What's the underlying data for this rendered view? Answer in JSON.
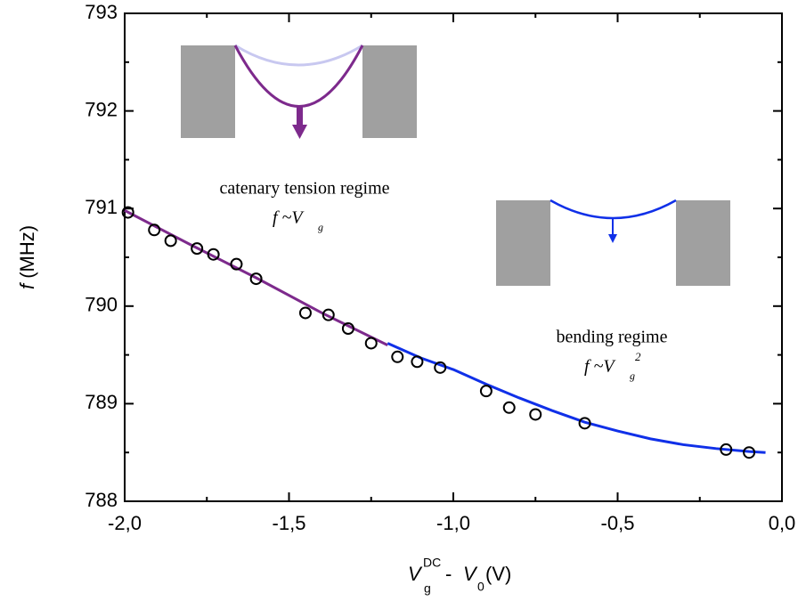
{
  "chart_data": {
    "type": "scatter",
    "xlabel": [
      "V",
      "g",
      "DC",
      "- ",
      "V",
      "0",
      "(V)"
    ],
    "ylabel": [
      "f",
      " (MHz)"
    ],
    "xlim": [
      -2.0,
      0.0
    ],
    "ylim": [
      788,
      793
    ],
    "xticks": [
      {
        "value": -2.0,
        "label": "-2,0"
      },
      {
        "value": -1.5,
        "label": "-1,5"
      },
      {
        "value": -1.0,
        "label": "-1,0"
      },
      {
        "value": -0.5,
        "label": "-0,5"
      },
      {
        "value": 0.0,
        "label": "0,0"
      }
    ],
    "yticks": [
      788,
      789,
      790,
      791,
      792,
      793
    ],
    "xminorticks": [
      -1.75,
      -1.25,
      -0.75,
      -0.25
    ],
    "yminorticks": [
      788.5,
      789.5,
      790.5,
      791.5,
      792.5
    ],
    "points": {
      "color": "#000000",
      "x": [
        -1.99,
        -1.91,
        -1.86,
        -1.78,
        -1.73,
        -1.66,
        -1.6,
        -1.45,
        -1.38,
        -1.32,
        -1.25,
        -1.17,
        -1.11,
        -1.04,
        -0.9,
        -0.83,
        -0.75,
        -0.6,
        -0.17,
        -0.1
      ],
      "values": [
        790.96,
        790.78,
        790.67,
        790.59,
        790.53,
        790.43,
        790.28,
        789.93,
        789.91,
        789.77,
        789.62,
        789.48,
        789.43,
        789.37,
        789.13,
        788.96,
        788.89,
        788.8,
        788.53,
        788.5
      ]
    },
    "series": [
      {
        "color": "#7d2a8c",
        "x": [
          -2.0,
          -1.8,
          -1.6,
          -1.4,
          -1.2
        ],
        "values": [
          790.98,
          790.63,
          790.29,
          789.93,
          789.6
        ]
      },
      {
        "color": "#1030e8",
        "x": [
          -1.2,
          -1.1,
          -1.0,
          -0.9,
          -0.8,
          -0.7,
          -0.6,
          -0.5,
          -0.4,
          -0.3,
          -0.2,
          -0.1,
          -0.05
        ],
        "values": [
          789.62,
          789.47,
          789.35,
          789.2,
          789.06,
          788.93,
          788.81,
          788.72,
          788.64,
          788.58,
          788.54,
          788.51,
          788.5
        ]
      }
    ],
    "annotations": [
      {
        "text": "catenary tension regime",
        "color": "#800080",
        "formula": [
          "f ~V",
          "g"
        ]
      },
      {
        "text": "bending regime",
        "color": "#1030e8",
        "formula": [
          "f ~V",
          "g",
          "2"
        ]
      }
    ]
  }
}
